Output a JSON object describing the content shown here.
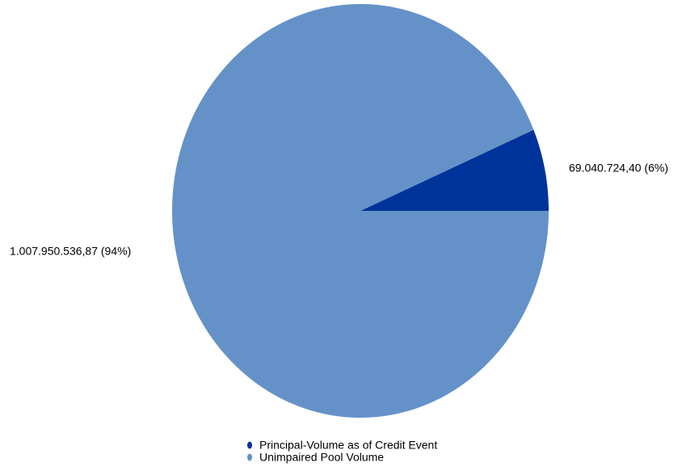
{
  "chart_data": {
    "type": "pie",
    "title": "",
    "series": [
      {
        "name": "Principal-Volume as of Credit Event",
        "value": 69040724.4,
        "label": "69.040.724,40 (6%)",
        "color": "#00339a"
      },
      {
        "name": "Unimpaired Pool Volume",
        "value": 1007950536.87,
        "label": "1.007.950.536,87 (94%)",
        "color": "#6492c8"
      }
    ],
    "legend_position": "bottom"
  }
}
